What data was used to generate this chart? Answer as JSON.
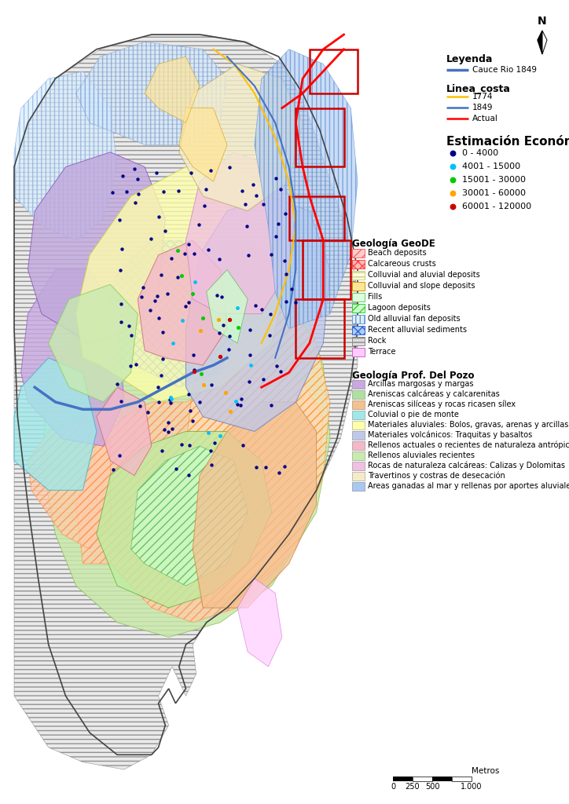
{
  "background_color": "#ffffff",
  "legend_leyenda_title": "Leyenda",
  "legend_linea_costa_title": "Linea_costa",
  "legend_estimacion_title": "Estimación Económica",
  "legend_geologia_geode_title": "Geología GeoDE",
  "legend_geologia_pozo_title": "Geología Prof. Del Pozo",
  "cauce_rio": {
    "label": "Cauce Rio 1849",
    "color": "#4472C4"
  },
  "linea_costa_items": [
    {
      "label": "1774",
      "color": "#FFC000"
    },
    {
      "label": "1849",
      "color": "#4472C4"
    },
    {
      "label": "Actual",
      "color": "#FF0000"
    }
  ],
  "estimacion_items": [
    {
      "label": "0 - 4000",
      "color": "#00008B"
    },
    {
      "label": "4001 - 15000",
      "color": "#00BFFF"
    },
    {
      "label": "15001 - 30000",
      "color": "#00CC00"
    },
    {
      "label": "30001 - 60000",
      "color": "#FFA500"
    },
    {
      "label": "60001 - 120000",
      "color": "#CC0000"
    }
  ],
  "geologia_geode_items": [
    {
      "label": "Beach deposits",
      "fc": "#FFCCCC",
      "ec": "#FF6666",
      "hatch": "///"
    },
    {
      "label": "Calcareous crusts",
      "fc": "#FFBBBB",
      "ec": "#FF4444",
      "hatch": "xxx"
    },
    {
      "label": "Colluvial and aluvial deposits",
      "fc": "#FFFFDD",
      "ec": "#CCCC88",
      "hatch": "---"
    },
    {
      "label": "Colluvial and slope deposits",
      "fc": "#FFE599",
      "ec": "#CC9900",
      "hatch": "==="
    },
    {
      "label": "Fills",
      "fc": "#DDFFDD",
      "ec": "#66CC66",
      "hatch": ""
    },
    {
      "label": "Lagoon deposits",
      "fc": "#CCFFCC",
      "ec": "#33CC33",
      "hatch": "///"
    },
    {
      "label": "Old alluvial fan deposits",
      "fc": "#DDEEFF",
      "ec": "#6699CC",
      "hatch": "|||"
    },
    {
      "label": "Recent alluvial sediments",
      "fc": "#AACCFF",
      "ec": "#3366CC",
      "hatch": "xxx"
    },
    {
      "label": "Rock",
      "fc": "#DDDDDD",
      "ec": "#888888",
      "hatch": "---"
    },
    {
      "label": "Terrace",
      "fc": "#FFCCFF",
      "ec": "#CC66CC",
      "hatch": "==="
    }
  ],
  "geologia_pozo_items": [
    {
      "label": "Arcillas margosas y margas",
      "color": "#C8A8E0"
    },
    {
      "label": "Areniscas calcáreas y calcarenitas",
      "color": "#B0E0A0"
    },
    {
      "label": "Areniscas silíceas y rocas ricasen sílex",
      "color": "#F4C090"
    },
    {
      "label": "Coluvial o pie de monte",
      "color": "#A0E8E8"
    },
    {
      "label": "Materiales aluviales: Bolos, gravas, arenas y arcillas",
      "color": "#FFFFAA"
    },
    {
      "label": "Materiales volcánicos: Traquitas y basaltos",
      "color": "#C0C8E8"
    },
    {
      "label": "Rellenos actuales o recientes de naturaleza antrópica",
      "color": "#F4B8C8"
    },
    {
      "label": "Rellenos aluviales recientes",
      "color": "#C8EAB0"
    },
    {
      "label": "Rocas de naturaleza calcáreas: Calizas y Dolomitas",
      "color": "#F0C0E0"
    },
    {
      "label": "Travertinos y costras de desecación",
      "color": "#F4ECC8"
    },
    {
      "label": "Areas ganadas al mar y rellenas por aportes aluviales o antrópicos",
      "color": "#A8C8F0"
    }
  ]
}
